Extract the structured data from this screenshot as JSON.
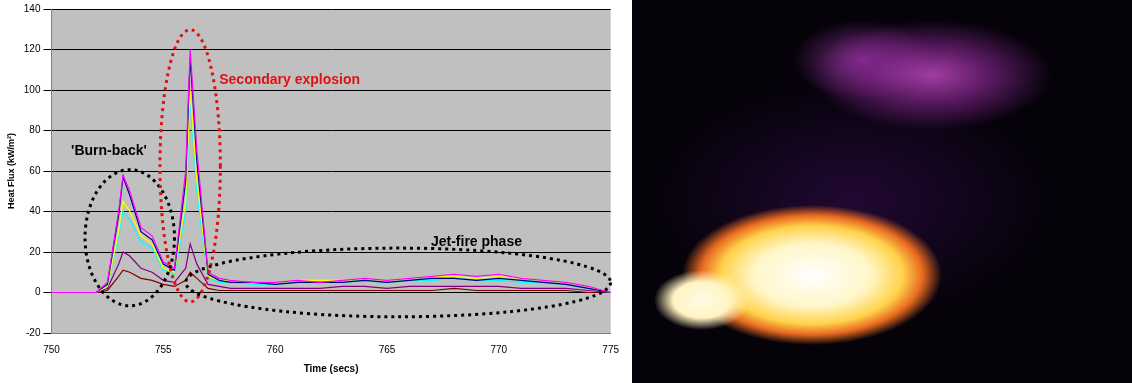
{
  "chart_data": {
    "type": "line",
    "x_label": "Time (secs)",
    "y_label": "Heat Flux (kW/m²)",
    "x": [
      750,
      751,
      752,
      752.5,
      753,
      753.2,
      753.5,
      754,
      754.5,
      755,
      755.5,
      756,
      756.2,
      756.5,
      757,
      757.5,
      758,
      759,
      760,
      761,
      762,
      763,
      764,
      765,
      766,
      767,
      768,
      769,
      770,
      771,
      772,
      773,
      774,
      775
    ],
    "series": [
      {
        "color": "#ff00ff",
        "values": [
          0,
          0,
          0,
          5,
          40,
          58,
          50,
          32,
          28,
          15,
          12,
          60,
          120,
          70,
          10,
          7,
          6,
          5,
          5,
          6,
          5,
          6,
          7,
          6,
          7,
          8,
          9,
          8,
          9,
          7,
          6,
          5,
          3,
          0
        ]
      },
      {
        "color": "#000080",
        "values": [
          0,
          0,
          0,
          4,
          38,
          57,
          48,
          30,
          26,
          14,
          11,
          55,
          116,
          65,
          9,
          6,
          5,
          5,
          4,
          5,
          5,
          5,
          6,
          5,
          6,
          7,
          7,
          6,
          7,
          6,
          5,
          4,
          2,
          0
        ]
      },
      {
        "color": "#ffff00",
        "values": [
          0,
          0,
          0,
          3,
          30,
          45,
          40,
          28,
          24,
          12,
          10,
          45,
          100,
          55,
          8,
          6,
          6,
          5,
          5,
          6,
          6,
          6,
          7,
          6,
          7,
          8,
          8,
          7,
          8,
          7,
          6,
          5,
          3,
          0
        ]
      },
      {
        "color": "#00ffff",
        "values": [
          0,
          0,
          0,
          3,
          28,
          40,
          36,
          25,
          22,
          11,
          9,
          40,
          95,
          50,
          7,
          5,
          5,
          4,
          4,
          5,
          5,
          5,
          6,
          5,
          6,
          6,
          7,
          6,
          6,
          5,
          5,
          4,
          2,
          0
        ]
      },
      {
        "color": "#800080",
        "values": [
          0,
          0,
          0,
          2,
          14,
          20,
          18,
          12,
          10,
          6,
          5,
          12,
          24,
          14,
          4,
          3,
          2,
          2,
          2,
          2,
          2,
          3,
          3,
          2,
          3,
          3,
          3,
          3,
          3,
          2,
          2,
          2,
          1,
          0
        ]
      },
      {
        "color": "#800000",
        "values": [
          0,
          0,
          0,
          1,
          8,
          11,
          10,
          7,
          6,
          4,
          3,
          6,
          10,
          7,
          2,
          1,
          1,
          1,
          1,
          1,
          1,
          1,
          1,
          1,
          1,
          1,
          2,
          1,
          1,
          1,
          1,
          1,
          0,
          0
        ]
      }
    ],
    "xlim": [
      750,
      775
    ],
    "xticks": [
      750,
      755,
      760,
      765,
      770,
      775
    ],
    "ylim": [
      -20,
      140
    ],
    "yticks": [
      -20,
      0,
      20,
      40,
      60,
      80,
      100,
      120,
      140
    ],
    "grid": true,
    "annotations": [
      {
        "text": "'Burn-back'",
        "color": "#000000"
      },
      {
        "text": "Secondary explosion",
        "color": "#e01010"
      },
      {
        "text": "Jet-fire phase",
        "color": "#000000"
      }
    ]
  }
}
